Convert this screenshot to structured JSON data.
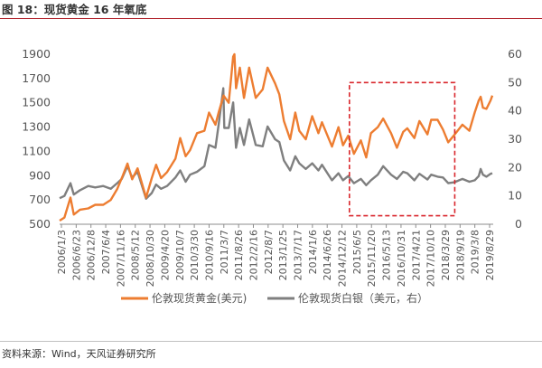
{
  "title": "图 18：现货黄金 16 年氧底",
  "source": "资料来源：Wind，天风证券研究所",
  "chart_data": {
    "type": "line",
    "y_left": {
      "min": 500,
      "max": 1900,
      "ticks": [
        500,
        700,
        900,
        1100,
        1300,
        1500,
        1700,
        1900
      ]
    },
    "y_right": {
      "min": 0,
      "max": 60,
      "ticks": [
        0,
        10,
        20,
        30,
        40,
        50,
        60
      ]
    },
    "x_range": [
      "2006-01-03",
      "2020-01-31"
    ],
    "x_ticks": [
      "2006/1/3",
      "2006/6/23",
      "2006/12/8",
      "2007/6/4",
      "2007/11/16",
      "2008/5/12",
      "2008/10/30",
      "2009/4/20",
      "2009/10/7",
      "2010/3/30",
      "2010/9/16",
      "2011/3/7",
      "2011/8/26",
      "2012/2/16",
      "2012/8/7",
      "2013/1/25",
      "2013/7/17",
      "2014/1/6",
      "2014/6/26",
      "2014/12/12",
      "2015/6/5",
      "2015/11/20",
      "2016/5/13",
      "2016/10/31",
      "2017/4/21",
      "2017/10/10",
      "2018/3/29",
      "2018/9/19",
      "2019/3/8",
      "2019/8/29"
    ],
    "colors": {
      "gold": "#ed7d31",
      "silver": "#7f7f7f",
      "highlight": "#d9262c"
    },
    "highlight_box": {
      "x_from": "2015-06-01",
      "x_to": "2018-11-01",
      "y_right_from": 3,
      "y_right_to": 50
    },
    "series": [
      {
        "name": "伦敦现货黄金(美元)",
        "axis": "left",
        "points": [
          [
            "2006-01-03",
            530
          ],
          [
            "2006-03-01",
            555
          ],
          [
            "2006-05-12",
            720
          ],
          [
            "2006-06-20",
            580
          ],
          [
            "2006-09-01",
            620
          ],
          [
            "2006-12-08",
            630
          ],
          [
            "2007-03-01",
            660
          ],
          [
            "2007-06-04",
            660
          ],
          [
            "2007-09-01",
            700
          ],
          [
            "2007-11-16",
            790
          ],
          [
            "2008-01-10",
            880
          ],
          [
            "2008-03-17",
            1000
          ],
          [
            "2008-05-12",
            870
          ],
          [
            "2008-07-15",
            960
          ],
          [
            "2008-10-24",
            720
          ],
          [
            "2008-12-30",
            880
          ],
          [
            "2009-02-20",
            990
          ],
          [
            "2009-04-20",
            880
          ],
          [
            "2009-07-01",
            930
          ],
          [
            "2009-10-07",
            1040
          ],
          [
            "2009-12-03",
            1210
          ],
          [
            "2010-02-05",
            1060
          ],
          [
            "2010-03-30",
            1110
          ],
          [
            "2010-06-20",
            1250
          ],
          [
            "2010-09-16",
            1270
          ],
          [
            "2010-11-09",
            1420
          ],
          [
            "2011-01-25",
            1320
          ],
          [
            "2011-03-07",
            1430
          ],
          [
            "2011-05-01",
            1560
          ],
          [
            "2011-07-01",
            1500
          ],
          [
            "2011-08-22",
            1880
          ],
          [
            "2011-09-06",
            1900
          ],
          [
            "2011-09-26",
            1620
          ],
          [
            "2011-11-10",
            1790
          ],
          [
            "2011-12-29",
            1540
          ],
          [
            "2012-02-28",
            1790
          ],
          [
            "2012-05-16",
            1540
          ],
          [
            "2012-08-07",
            1610
          ],
          [
            "2012-10-04",
            1790
          ],
          [
            "2012-12-31",
            1660
          ],
          [
            "2013-02-20",
            1570
          ],
          [
            "2013-04-15",
            1350
          ],
          [
            "2013-06-28",
            1200
          ],
          [
            "2013-08-28",
            1420
          ],
          [
            "2013-10-15",
            1270
          ],
          [
            "2013-12-31",
            1200
          ],
          [
            "2014-03-17",
            1390
          ],
          [
            "2014-05-30",
            1250
          ],
          [
            "2014-07-10",
            1340
          ],
          [
            "2014-11-06",
            1140
          ],
          [
            "2015-01-22",
            1300
          ],
          [
            "2015-03-17",
            1150
          ],
          [
            "2015-05-18",
            1230
          ],
          [
            "2015-07-24",
            1080
          ],
          [
            "2015-10-15",
            1190
          ],
          [
            "2015-12-17",
            1050
          ],
          [
            "2016-02-11",
            1250
          ],
          [
            "2016-05-02",
            1300
          ],
          [
            "2016-07-06",
            1370
          ],
          [
            "2016-10-07",
            1250
          ],
          [
            "2016-12-15",
            1130
          ],
          [
            "2017-02-27",
            1260
          ],
          [
            "2017-04-17",
            1290
          ],
          [
            "2017-07-10",
            1210
          ],
          [
            "2017-09-08",
            1350
          ],
          [
            "2017-12-12",
            1240
          ],
          [
            "2018-01-25",
            1360
          ],
          [
            "2018-04-11",
            1360
          ],
          [
            "2018-06-15",
            1280
          ],
          [
            "2018-08-16",
            1175
          ],
          [
            "2018-10-26",
            1235
          ],
          [
            "2019-01-31",
            1320
          ],
          [
            "2019-04-23",
            1270
          ],
          [
            "2019-06-25",
            1420
          ],
          [
            "2019-08-13",
            1520
          ],
          [
            "2019-09-04",
            1550
          ],
          [
            "2019-10-01",
            1460
          ],
          [
            "2019-11-12",
            1450
          ],
          [
            "2019-12-31",
            1520
          ],
          [
            "2020-01-20",
            1560
          ]
        ]
      },
      {
        "name": "伦敦现货白银（美元，右）",
        "axis": "right",
        "points": [
          [
            "2006-01-03",
            9.2
          ],
          [
            "2006-03-01",
            10.0
          ],
          [
            "2006-05-12",
            14.5
          ],
          [
            "2006-06-20",
            10.5
          ],
          [
            "2006-09-01",
            12.0
          ],
          [
            "2006-12-08",
            13.5
          ],
          [
            "2007-03-01",
            13.0
          ],
          [
            "2007-06-04",
            13.5
          ],
          [
            "2007-09-01",
            12.5
          ],
          [
            "2007-11-16",
            14.5
          ],
          [
            "2008-01-10",
            16.0
          ],
          [
            "2008-03-17",
            20.5
          ],
          [
            "2008-05-12",
            16.5
          ],
          [
            "2008-07-15",
            18.5
          ],
          [
            "2008-10-24",
            9.0
          ],
          [
            "2008-12-30",
            11.0
          ],
          [
            "2009-02-20",
            14.0
          ],
          [
            "2009-04-20",
            12.5
          ],
          [
            "2009-07-01",
            13.5
          ],
          [
            "2009-10-07",
            16.5
          ],
          [
            "2009-12-03",
            19.0
          ],
          [
            "2010-02-05",
            15.0
          ],
          [
            "2010-03-30",
            17.5
          ],
          [
            "2010-06-20",
            18.5
          ],
          [
            "2010-09-16",
            20.5
          ],
          [
            "2010-11-09",
            28.0
          ],
          [
            "2011-01-25",
            27.0
          ],
          [
            "2011-03-07",
            36.0
          ],
          [
            "2011-04-28",
            48.0
          ],
          [
            "2011-05-10",
            34.0
          ],
          [
            "2011-07-01",
            34.0
          ],
          [
            "2011-08-22",
            43.0
          ],
          [
            "2011-09-26",
            27.0
          ],
          [
            "2011-11-10",
            34.0
          ],
          [
            "2011-12-29",
            28.0
          ],
          [
            "2012-02-28",
            37.0
          ],
          [
            "2012-05-16",
            28.0
          ],
          [
            "2012-08-07",
            27.5
          ],
          [
            "2012-10-04",
            34.5
          ],
          [
            "2012-12-31",
            30.0
          ],
          [
            "2013-02-20",
            29.0
          ],
          [
            "2013-04-15",
            22.5
          ],
          [
            "2013-06-28",
            19.0
          ],
          [
            "2013-08-28",
            24.0
          ],
          [
            "2013-10-15",
            21.5
          ],
          [
            "2013-12-31",
            19.5
          ],
          [
            "2014-03-17",
            21.5
          ],
          [
            "2014-05-30",
            19.0
          ],
          [
            "2014-07-10",
            21.0
          ],
          [
            "2014-11-06",
            15.5
          ],
          [
            "2015-01-22",
            18.0
          ],
          [
            "2015-03-17",
            15.5
          ],
          [
            "2015-05-18",
            17.0
          ],
          [
            "2015-07-24",
            14.5
          ],
          [
            "2015-10-15",
            16.0
          ],
          [
            "2015-12-17",
            13.8
          ],
          [
            "2016-02-11",
            15.5
          ],
          [
            "2016-05-02",
            17.5
          ],
          [
            "2016-07-06",
            20.5
          ],
          [
            "2016-10-07",
            17.5
          ],
          [
            "2016-12-15",
            16.0
          ],
          [
            "2017-02-27",
            18.5
          ],
          [
            "2017-04-17",
            18.0
          ],
          [
            "2017-07-10",
            15.5
          ],
          [
            "2017-09-08",
            17.8
          ],
          [
            "2017-12-12",
            15.8
          ],
          [
            "2018-01-25",
            17.5
          ],
          [
            "2018-04-11",
            16.8
          ],
          [
            "2018-06-15",
            16.5
          ],
          [
            "2018-08-16",
            14.5
          ],
          [
            "2018-10-26",
            14.8
          ],
          [
            "2019-01-31",
            16.0
          ],
          [
            "2019-04-23",
            15.0
          ],
          [
            "2019-06-25",
            15.5
          ],
          [
            "2019-08-13",
            17.0
          ],
          [
            "2019-09-04",
            19.5
          ],
          [
            "2019-10-01",
            17.5
          ],
          [
            "2019-11-12",
            16.8
          ],
          [
            "2019-12-31",
            17.8
          ],
          [
            "2020-01-20",
            18.0
          ]
        ]
      }
    ]
  }
}
